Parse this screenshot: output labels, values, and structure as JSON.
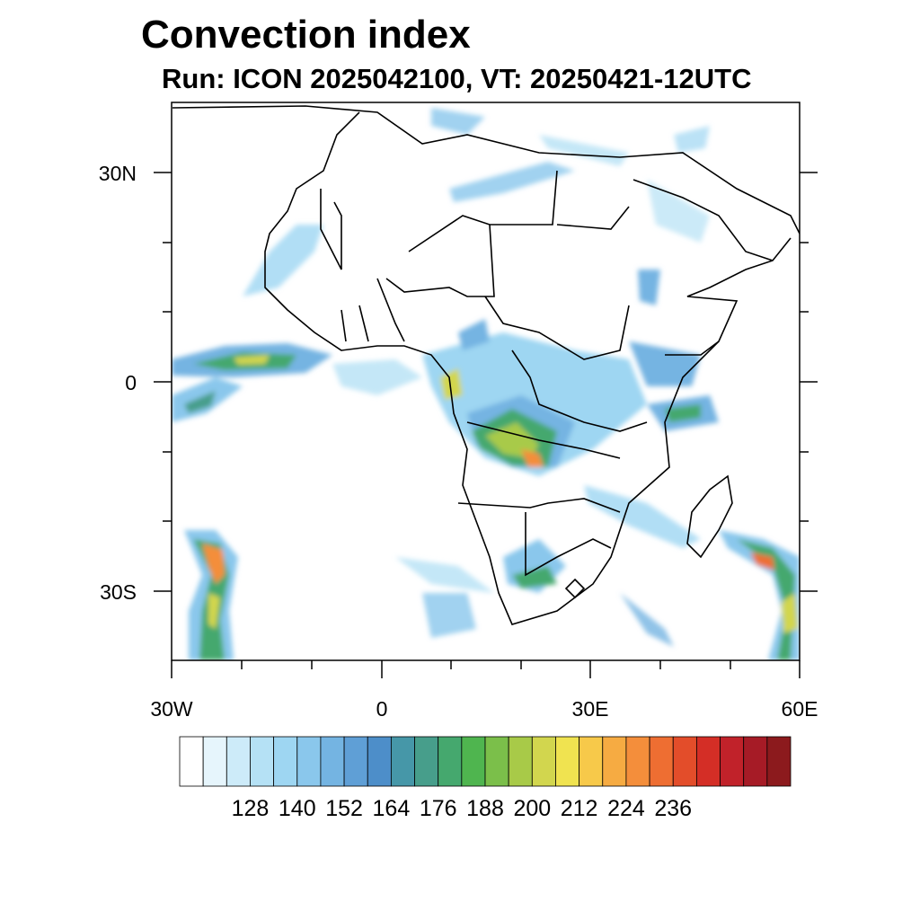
{
  "title": "Convection index",
  "subtitle": "Run: ICON 2025042100,  VT: 20250421-12UTC",
  "lat_labels": [
    "30N",
    "0",
    "30S"
  ],
  "lon_labels": [
    "30W",
    "0",
    "30E",
    "60E"
  ],
  "colorbar": {
    "labels": [
      "128",
      "140",
      "152",
      "164",
      "176",
      "188",
      "200",
      "212",
      "224",
      "236"
    ],
    "colors": [
      "#ffffff",
      "#e6f5fc",
      "#cdebf9",
      "#b5e1f5",
      "#9ed6f2",
      "#8ac7ec",
      "#74b4e2",
      "#5f9fd6",
      "#4d8ec9",
      "#4697a8",
      "#479e8b",
      "#45a86e",
      "#4fb54f",
      "#7bbf4a",
      "#a8ca48",
      "#d2d64e",
      "#f0e350",
      "#f7c94a",
      "#f6ab42",
      "#f48e3b",
      "#ee6e32",
      "#e34d2a",
      "#d42e26",
      "#c1222a",
      "#a61b26",
      "#8c1a1d"
    ]
  }
}
